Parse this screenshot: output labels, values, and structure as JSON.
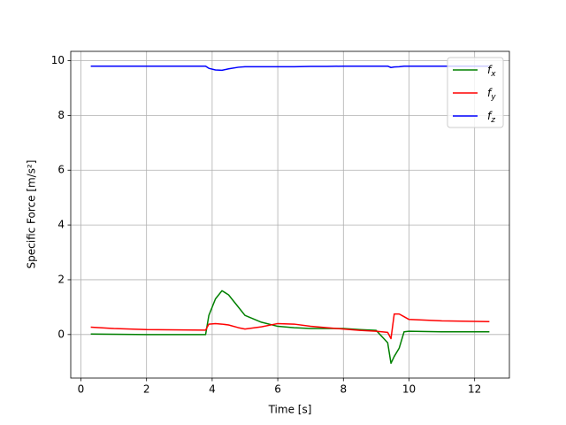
{
  "chart_data": {
    "type": "line",
    "xlabel": "Time [s]",
    "ylabel": "Specific Force [m/s²]",
    "x": [
      0.3,
      1,
      2,
      3.8,
      3.9,
      4.1,
      4.3,
      4.5,
      4.8,
      5,
      5.5,
      6,
      6.5,
      7,
      7.5,
      8,
      8.5,
      9,
      9.35,
      9.45,
      9.55,
      9.7,
      9.85,
      10,
      11,
      12.45
    ],
    "series": [
      {
        "name": "f_x",
        "color": "#008000",
        "values": [
          0.02,
          0.01,
          0,
          0,
          0.7,
          1.3,
          1.6,
          1.45,
          1.0,
          0.7,
          0.45,
          0.3,
          0.25,
          0.22,
          0.22,
          0.22,
          0.18,
          0.15,
          -0.3,
          -1.05,
          -0.8,
          -0.5,
          0.1,
          0.12,
          0.1,
          0.1
        ]
      },
      {
        "name": "f_y",
        "color": "#ff0000",
        "values": [
          0.27,
          0.22,
          0.18,
          0.16,
          0.38,
          0.4,
          0.38,
          0.35,
          0.25,
          0.2,
          0.28,
          0.4,
          0.38,
          0.3,
          0.25,
          0.2,
          0.15,
          0.12,
          0.08,
          -0.15,
          0.75,
          0.75,
          0.65,
          0.55,
          0.5,
          0.47
        ]
      },
      {
        "name": "f_z",
        "color": "#0000ff",
        "values": [
          9.8,
          9.8,
          9.8,
          9.8,
          9.72,
          9.66,
          9.65,
          9.7,
          9.76,
          9.78,
          9.78,
          9.78,
          9.78,
          9.79,
          9.79,
          9.8,
          9.8,
          9.8,
          9.8,
          9.75,
          9.77,
          9.78,
          9.8,
          9.8,
          9.8,
          9.8
        ]
      }
    ],
    "xlim": [
      -0.31,
      13.06
    ],
    "xticks": [
      0,
      2,
      4,
      6,
      8,
      10,
      12
    ],
    "ylim": [
      -1.59,
      10.34
    ],
    "yticks": [
      0,
      2,
      4,
      6,
      8,
      10
    ],
    "grid": true,
    "legend": "upper right"
  }
}
